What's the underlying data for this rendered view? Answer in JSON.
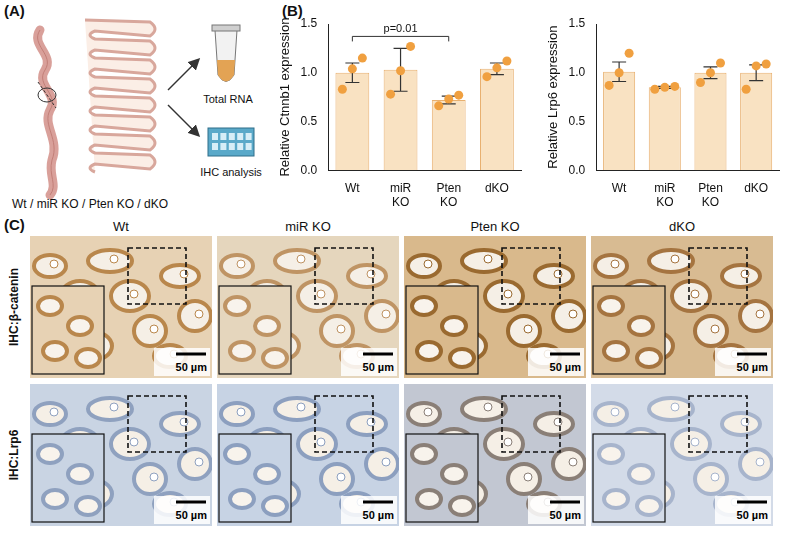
{
  "panel_labels": [
    "(A)",
    "(B)",
    "(C)"
  ],
  "panel_a": {
    "rna": "Total RNA",
    "ihc": "IHC analysis",
    "groups": "Wt / miR KO / Pten KO / dKO"
  },
  "chart_data": [
    {
      "type": "bar",
      "y_label": "Relative Ctnnb1 expression",
      "categories": [
        "Wt",
        "miR KO",
        "Pten KO",
        "dKO"
      ],
      "values": [
        1.0,
        1.03,
        0.72,
        1.04
      ],
      "errors": [
        0.1,
        0.22,
        0.04,
        0.06
      ],
      "points": [
        [
          0.83,
          1.04,
          1.15
        ],
        [
          0.78,
          1.02,
          1.27
        ],
        [
          0.66,
          0.73,
          0.77
        ],
        [
          0.96,
          1.05,
          1.12
        ]
      ],
      "color": "#f9e2c2",
      "grid": false,
      "ylim": [
        0,
        1.5
      ],
      "yticks": [
        {
          "value": 0,
          "label": "0.0"
        },
        {
          "value": 0.5,
          "label": "0.5"
        },
        {
          "value": 1.0,
          "label": "1.0"
        },
        {
          "value": 1.5,
          "label": "1.5"
        }
      ],
      "annotations": [
        {
          "text": "p=0.01",
          "from": "Wt",
          "to": "Pten KO"
        }
      ]
    },
    {
      "type": "bar",
      "y_label": "Relative Lrp6 expression",
      "categories": [
        "Wt",
        "miR KO",
        "Pten KO",
        "dKO"
      ],
      "values": [
        1.01,
        0.85,
        1.0,
        1.0
      ],
      "errors": [
        0.1,
        0.01,
        0.06,
        0.08
      ],
      "points": [
        [
          0.87,
          1.0,
          1.2
        ],
        [
          0.83,
          0.85,
          0.86
        ],
        [
          0.9,
          1.0,
          1.1
        ],
        [
          0.83,
          1.07,
          1.09
        ]
      ],
      "color": "#f9e2c2",
      "grid": false,
      "ylim": [
        0,
        1.5
      ],
      "yticks": [
        {
          "value": 0,
          "label": "0.0"
        },
        {
          "value": 0.5,
          "label": "0.5"
        },
        {
          "value": 1.0,
          "label": "1.0"
        },
        {
          "value": 1.5,
          "label": "1.5"
        }
      ],
      "annotations": []
    }
  ],
  "panel_c": {
    "columns": [
      "Wt",
      "miR KO",
      "Pten KO",
      "dKO"
    ],
    "rows": [
      "IHC:β-catenin",
      "IHC:Lrp6"
    ],
    "scale_bar": "50 µm"
  }
}
